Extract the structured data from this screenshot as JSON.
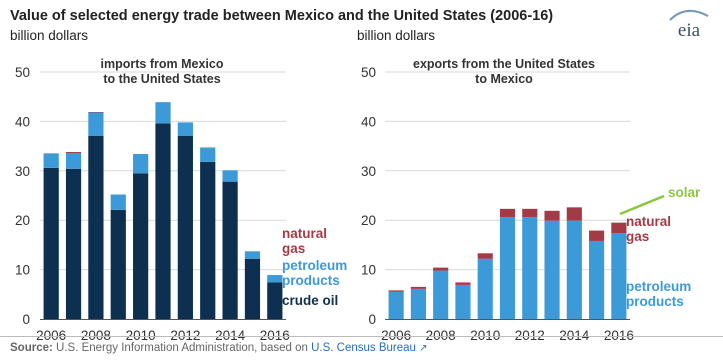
{
  "title": "Value of selected energy trade between Mexico and the United States (2006-16)",
  "logo_text": "eia",
  "source": {
    "label": "Source:",
    "text": "U.S. Energy Information Administration, based on",
    "link_text": "U.S. Census Bureau"
  },
  "colors": {
    "crude_oil": "#0d3050",
    "petroleum_products": "#3d9ad8",
    "natural_gas": "#a33b47",
    "solar": "#8cc63f",
    "axis_text": "#333333",
    "grid": "#d9d9d9"
  },
  "chart_data": [
    {
      "type": "bar",
      "stacked": true,
      "title": "imports from Mexico to the United States",
      "ylabel": "billion dollars",
      "ylim": [
        0,
        50
      ],
      "yticks": [
        0,
        10,
        20,
        30,
        40,
        50
      ],
      "x": [
        2006,
        2007,
        2008,
        2009,
        2010,
        2011,
        2012,
        2013,
        2014,
        2015,
        2016
      ],
      "xtick_labels": [
        "2006",
        "2008",
        "2010",
        "2012",
        "2014",
        "2016"
      ],
      "grid": true,
      "series": [
        {
          "name": "crude oil",
          "color": "#0d3050",
          "values": [
            30.6,
            30.4,
            37.1,
            22.1,
            29.5,
            39.6,
            37.1,
            31.8,
            27.8,
            12.2,
            7.4
          ]
        },
        {
          "name": "petroleum products",
          "color": "#3d9ad8",
          "values": [
            2.8,
            3.2,
            4.7,
            3.1,
            3.9,
            4.3,
            2.7,
            2.8,
            2.3,
            1.5,
            1.5
          ]
        },
        {
          "name": "natural gas",
          "color": "#a33b47",
          "values": [
            0.1,
            0.2,
            0.1,
            0.0,
            0.0,
            0.0,
            0.0,
            0.1,
            0.0,
            0.0,
            0.0
          ]
        }
      ],
      "legend": {
        "placement": "right",
        "entries": [
          {
            "lines": [
              "natural",
              "gas"
            ],
            "series": "natural gas"
          },
          {
            "lines": [
              "petroleum",
              "products"
            ],
            "series": "petroleum products"
          },
          {
            "lines": [
              "crude oil"
            ],
            "series": "crude oil"
          }
        ]
      }
    },
    {
      "type": "bar",
      "stacked": true,
      "title": "exports from the United States to Mexico",
      "ylabel": "billion dollars",
      "ylim": [
        0,
        50
      ],
      "yticks": [
        0,
        10,
        20,
        30,
        40,
        50
      ],
      "x": [
        2006,
        2007,
        2008,
        2009,
        2010,
        2011,
        2012,
        2013,
        2014,
        2015,
        2016
      ],
      "xtick_labels": [
        "2006",
        "2008",
        "2010",
        "2012",
        "2014",
        "2016"
      ],
      "grid": true,
      "series": [
        {
          "name": "petroleum products",
          "color": "#3d9ad8",
          "values": [
            5.5,
            6.1,
            9.8,
            6.9,
            12.2,
            20.6,
            20.6,
            19.9,
            19.9,
            15.8,
            17.4
          ]
        },
        {
          "name": "natural gas",
          "color": "#a33b47",
          "values": [
            0.3,
            0.4,
            0.6,
            0.5,
            1.1,
            1.7,
            1.7,
            2.0,
            2.7,
            2.1,
            2.1
          ]
        },
        {
          "name": "solar",
          "color": "#8cc63f",
          "values": [
            0,
            0,
            0,
            0,
            0,
            0,
            0,
            0,
            0,
            0,
            0.05
          ]
        }
      ],
      "legend": {
        "placement": "right",
        "entries": [
          {
            "lines": [
              "solar"
            ],
            "series": "solar"
          },
          {
            "lines": [
              "natural",
              "gas"
            ],
            "series": "natural gas"
          },
          {
            "lines": [
              "petroleum",
              "products"
            ],
            "series": "petroleum products"
          }
        ]
      }
    }
  ]
}
